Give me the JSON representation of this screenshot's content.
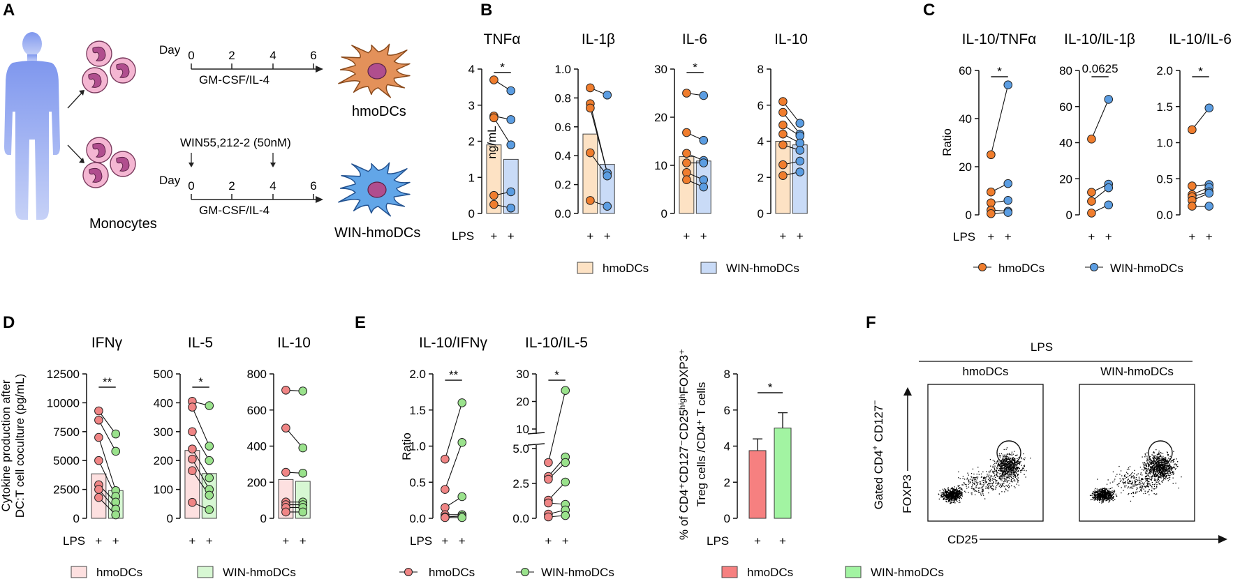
{
  "panels": {
    "a": "A",
    "b": "B",
    "c": "C",
    "d": "D",
    "e": "E",
    "f": "F"
  },
  "colors": {
    "hmo_bar": "#fde2c4",
    "hmo_dot": "#f07d2d",
    "win_bar": "#c9dbf7",
    "win_dot": "#5b9de2",
    "d_hmo_bar": "#fde0e0",
    "d_hmo_dot": "#f08585",
    "d_win_bar": "#d7f7d3",
    "d_win_dot": "#9ae28c",
    "tr_hmo": "#f68080",
    "tr_win": "#a2f4a2",
    "cell_pink": "#f4b6d2",
    "nucleus": "#b04e8e",
    "hmodc": "#e3915a",
    "winhmodc": "#62a6e8",
    "human": "#8ea6ef"
  },
  "panelA": {
    "day_label": "Day",
    "days": [
      "0",
      "2",
      "4",
      "6"
    ],
    "gm_label": "GM-CSF/IL-4",
    "win_label": "WIN55,212-2 (50nM)",
    "monocytes_label": "Monocytes",
    "hmodcs_label": "hmoDCs",
    "win_hmodcs_label": "WIN-hmoDCs"
  },
  "common": {
    "lps": "LPS",
    "plus": "+"
  },
  "chart_data": [
    {
      "id": "B",
      "type": "bar",
      "ylabel": "ng/mL",
      "legend": [
        "hmoDCs",
        "WIN-hmoDCs"
      ],
      "subplots": [
        {
          "title": "TNFα",
          "ylim": [
            0,
            4
          ],
          "ticks": [
            "0",
            "1",
            "2",
            "3",
            "4"
          ],
          "bars": [
            1.9,
            1.5
          ],
          "sig": "*",
          "pairs": [
            [
              3.7,
              3.4
            ],
            [
              2.7,
              2.6
            ],
            [
              2.65,
              1.9
            ],
            [
              0.5,
              0.6
            ],
            [
              0.25,
              0.15
            ]
          ]
        },
        {
          "title": "IL-1β",
          "ylim": [
            0,
            1
          ],
          "ticks": [
            "0.0",
            "0.2",
            "0.4",
            "0.6",
            "0.8",
            "1.0"
          ],
          "bars": [
            0.55,
            0.34
          ],
          "sig": "",
          "pairs": [
            [
              0.87,
              0.82
            ],
            [
              0.76,
              0.28
            ],
            [
              0.73,
              0.28
            ],
            [
              0.42,
              0.26
            ],
            [
              0.09,
              0.05
            ]
          ]
        },
        {
          "title": "IL-6",
          "ylim": [
            0,
            30
          ],
          "ticks": [
            "0",
            "10",
            "20",
            "30"
          ],
          "bars": [
            11.8,
            10.9
          ],
          "sig": "*",
          "pairs": [
            [
              25,
              24.5
            ],
            [
              16.8,
              15.2
            ],
            [
              12.5,
              11
            ],
            [
              10.5,
              10.5
            ],
            [
              8.5,
              7
            ],
            [
              7,
              5.5
            ]
          ]
        },
        {
          "title": "IL-10",
          "ylim": [
            0,
            8
          ],
          "ticks": [
            "0",
            "2",
            "4",
            "6",
            "8"
          ],
          "bars": [
            4.0,
            3.8
          ],
          "sig": "",
          "pairs": [
            [
              6.2,
              5
            ],
            [
              5.6,
              4.4
            ],
            [
              4.9,
              4.3
            ],
            [
              4.4,
              3.9
            ],
            [
              3.8,
              3.5
            ],
            [
              2.7,
              2.9
            ],
            [
              2.1,
              2.3
            ]
          ]
        }
      ]
    },
    {
      "id": "C",
      "type": "paired-dots",
      "ylabel": "Ratio",
      "legend": [
        "hmoDCs",
        "WIN-hmoDCs"
      ],
      "subplots": [
        {
          "title": "IL-10/TNFα",
          "ylim": [
            0,
            60
          ],
          "ticks": [
            "0",
            "20",
            "40",
            "60"
          ],
          "sig": "*",
          "pairs": [
            [
              25,
              54
            ],
            [
              9.5,
              13
            ],
            [
              5,
              6
            ],
            [
              2,
              1.5
            ],
            [
              0.5,
              1
            ]
          ]
        },
        {
          "title": "IL-10/IL-1β",
          "ylim": [
            0,
            80
          ],
          "ticks": [
            "0",
            "20",
            "40",
            "60",
            "80"
          ],
          "sig": "0.0625",
          "pairs": [
            [
              42,
              64
            ],
            [
              12.5,
              17
            ],
            [
              7.5,
              15
            ],
            [
              1,
              5.5
            ]
          ]
        },
        {
          "title": "IL-10/IL-6",
          "ylim": [
            0,
            2
          ],
          "ticks": [
            "0.0",
            "0.5",
            "1.0",
            "1.5",
            "2.0"
          ],
          "sig": "*",
          "pairs": [
            [
              1.18,
              1.48
            ],
            [
              0.4,
              0.42
            ],
            [
              0.28,
              0.38
            ],
            [
              0.25,
              0.32
            ],
            [
              0.2,
              0.3
            ],
            [
              0.12,
              0.12
            ]
          ]
        }
      ]
    },
    {
      "id": "D",
      "type": "bar",
      "ylabel": [
        "Cytokine production after",
        "DC:T cell coculture (pg/mL)"
      ],
      "legend": [
        "hmoDCs",
        "WIN-hmoDCs"
      ],
      "subplots": [
        {
          "title": "IFNγ",
          "ylim": [
            0,
            12500
          ],
          "ticks": [
            "0",
            "2500",
            "5000",
            "7500",
            "10000",
            "12500"
          ],
          "bars": [
            3850,
            2400
          ],
          "sig": "**",
          "pairs": [
            [
              9300,
              7300
            ],
            [
              8500,
              5800
            ],
            [
              7000,
              2400
            ],
            [
              5000,
              1900
            ],
            [
              2900,
              1400
            ],
            [
              2500,
              800
            ],
            [
              1800,
              300
            ]
          ]
        },
        {
          "title": "IL-5",
          "ylim": [
            0,
            500
          ],
          "ticks": [
            "0",
            "100",
            "200",
            "300",
            "400",
            "500"
          ],
          "bars": [
            235,
            155
          ],
          "sig": "*",
          "pairs": [
            [
              405,
              390
            ],
            [
              385,
              250
            ],
            [
              300,
              200
            ],
            [
              240,
              140
            ],
            [
              205,
              100
            ],
            [
              165,
              80
            ],
            [
              55,
              30
            ]
          ]
        },
        {
          "title": "IL-10",
          "ylim": [
            0,
            800
          ],
          "ticks": [
            "0",
            "200",
            "400",
            "600",
            "800"
          ],
          "bars": [
            215,
            205
          ],
          "sig": "",
          "pairs": [
            [
              710,
              705
            ],
            [
              500,
              390
            ],
            [
              255,
              250
            ],
            [
              90,
              90
            ],
            [
              75,
              75
            ],
            [
              60,
              60
            ],
            [
              35,
              35
            ]
          ]
        }
      ]
    },
    {
      "id": "E",
      "type": "paired-dots",
      "ylabel": "Ratio",
      "legend": [
        "hmoDCs",
        "WIN-hmoDCs"
      ],
      "subplots": [
        {
          "title": "IL-10/IFNγ",
          "ylim": [
            0,
            2
          ],
          "ticks": [
            "0.0",
            "0.5",
            "1.0",
            "1.5",
            "2.0"
          ],
          "sig": "**",
          "pairs": [
            [
              0.82,
              1.6
            ],
            [
              0.4,
              1.05
            ],
            [
              0.15,
              0.3
            ],
            [
              0.05,
              0.05
            ],
            [
              0.02,
              0.03
            ],
            [
              0.01,
              0.01
            ]
          ]
        },
        {
          "title": "IL-10/IL-5",
          "ylim": [
            0,
            30
          ],
          "broken_axis": true,
          "ticks": [
            "0.0",
            "2.5",
            "5.0",
            "10",
            "20",
            "30"
          ],
          "sig": "*",
          "pairs": [
            [
              4,
              24
            ],
            [
              3,
              4.4
            ],
            [
              2.8,
              4
            ],
            [
              1.3,
              2.6
            ],
            [
              1.1,
              1
            ],
            [
              0.3,
              0.6
            ],
            [
              0.1,
              0.2
            ]
          ]
        }
      ]
    },
    {
      "id": "Treg",
      "type": "bar",
      "ylabel": [
        "% of CD4⁺CD127⁻CD25ʰⁱᵍʰFOXP3⁺",
        "Treg cells /CD4⁺ T cells"
      ],
      "legend": [
        "hmoDCs",
        "WIN-hmoDCs"
      ],
      "ylim": [
        0,
        8
      ],
      "ticks": [
        "0",
        "2",
        "4",
        "6",
        "8"
      ],
      "values": [
        3.75,
        5.0
      ],
      "errors": [
        0.65,
        0.85
      ],
      "sig": "*"
    },
    {
      "id": "F",
      "type": "scatter",
      "top_label": "LPS",
      "sub_titles": [
        "hmoDCs",
        "WIN-hmoDCs"
      ],
      "xlabel": "CD25",
      "ylabel": "FOXP3",
      "gate_label_parts": [
        "Gated CD4",
        "+",
        " CD127",
        "−"
      ]
    }
  ]
}
